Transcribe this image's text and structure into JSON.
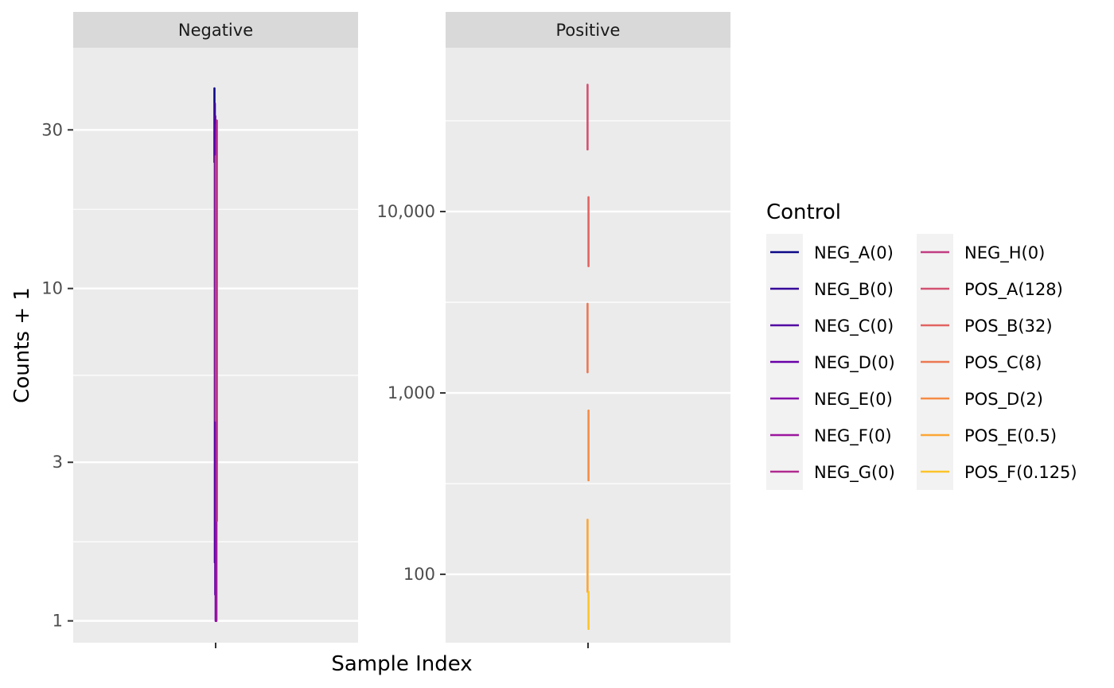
{
  "chart_data": {
    "type": "line",
    "xlabel": "Sample Index",
    "ylabel": "Counts + 1",
    "y_scale": "log",
    "grid": true,
    "legend": {
      "title": "Control",
      "placement": "right",
      "entries": [
        {
          "label": "NEG_A(0)",
          "color": "#0d0887"
        },
        {
          "label": "NEG_B(0)",
          "color": "#350498"
        },
        {
          "label": "NEG_C(0)",
          "color": "#5102a3"
        },
        {
          "label": "NEG_D(0)",
          "color": "#6a00a8"
        },
        {
          "label": "NEG_E(0)",
          "color": "#8405a7"
        },
        {
          "label": "NEG_F(0)",
          "color": "#9c179e"
        },
        {
          "label": "NEG_G(0)",
          "color": "#b12a90"
        },
        {
          "label": "NEG_H(0)",
          "color": "#c23c81"
        },
        {
          "label": "POS_A(128)",
          "color": "#d35171"
        },
        {
          "label": "POS_B(32)",
          "color": "#e16462"
        },
        {
          "label": "POS_C(8)",
          "color": "#ec7853"
        },
        {
          "label": "POS_D(2)",
          "color": "#f58c46"
        },
        {
          "label": "POS_E(0.5)",
          "color": "#fca636"
        },
        {
          "label": "POS_F(0.125)",
          "color": "#fcc42b"
        }
      ]
    },
    "panels": [
      {
        "strip": "Negative",
        "ylim": [
          0.86,
          53
        ],
        "y_ticks": [
          1,
          3,
          10,
          30
        ],
        "y_tick_labels": [
          "1",
          "3",
          "10",
          "30"
        ],
        "y_minor": [
          1.73,
          5.48,
          17.3
        ],
        "series": [
          {
            "label": "NEG_A(0)",
            "color": "#0d0887",
            "y_range": [
              24,
              40
            ]
          },
          {
            "label": "NEG_B(0)",
            "color": "#350498",
            "y_range": [
              1.5,
              36
            ]
          },
          {
            "label": "NEG_C(0)",
            "color": "#5102a3",
            "y_range": [
              1.2,
              33
            ]
          },
          {
            "label": "NEG_D(0)",
            "color": "#6a00a8",
            "y_range": [
              1,
              31
            ]
          },
          {
            "label": "NEG_E(0)",
            "color": "#8405a7",
            "y_range": [
              1,
              30
            ]
          },
          {
            "label": "NEG_F(0)",
            "color": "#9c179e",
            "y_range": [
              1,
              28
            ]
          },
          {
            "label": "NEG_G(0)",
            "color": "#b12a90",
            "y_range": [
              2,
              32
            ]
          },
          {
            "label": "NEG_H(0)",
            "color": "#c23c81",
            "y_range": [
              4,
              25
            ]
          }
        ]
      },
      {
        "strip": "Positive",
        "ylim": [
          42,
          80000
        ],
        "y_ticks": [
          100,
          1000,
          10000
        ],
        "y_tick_labels": [
          "100",
          "1,000",
          "10,000"
        ],
        "y_minor": [
          316,
          3162,
          31623
        ],
        "series": [
          {
            "label": "POS_A(128)",
            "color": "#d35171",
            "y_range": [
              22000,
              50000
            ]
          },
          {
            "label": "POS_B(32)",
            "color": "#e16462",
            "y_range": [
              5000,
              12000
            ]
          },
          {
            "label": "POS_C(8)",
            "color": "#ec7853",
            "y_range": [
              1300,
              3100
            ]
          },
          {
            "label": "POS_D(2)",
            "color": "#f58c46",
            "y_range": [
              330,
              800
            ]
          },
          {
            "label": "POS_E(0.5)",
            "color": "#fca636",
            "y_range": [
              80,
              200
            ]
          },
          {
            "label": "POS_F(0.125)",
            "color": "#fcc42b",
            "y_range": [
              50,
              80
            ]
          }
        ]
      }
    ]
  }
}
